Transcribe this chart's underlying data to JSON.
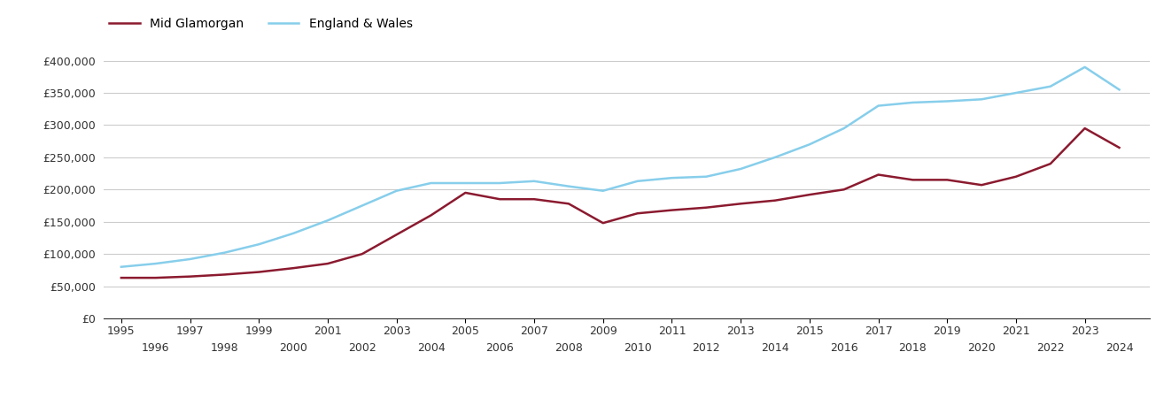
{
  "mid_glamorgan": {
    "years": [
      1995,
      1996,
      1997,
      1998,
      1999,
      2000,
      2001,
      2002,
      2003,
      2004,
      2005,
      2006,
      2007,
      2008,
      2009,
      2010,
      2011,
      2012,
      2013,
      2014,
      2015,
      2016,
      2017,
      2018,
      2019,
      2020,
      2021,
      2022,
      2023,
      2024
    ],
    "values": [
      63000,
      63000,
      65000,
      68000,
      72000,
      78000,
      85000,
      100000,
      130000,
      160000,
      195000,
      185000,
      185000,
      178000,
      148000,
      163000,
      168000,
      172000,
      178000,
      183000,
      192000,
      200000,
      223000,
      215000,
      215000,
      207000,
      220000,
      240000,
      295000,
      265000
    ]
  },
  "england_wales": {
    "years": [
      1995,
      1996,
      1997,
      1998,
      1999,
      2000,
      2001,
      2002,
      2003,
      2004,
      2005,
      2006,
      2007,
      2008,
      2009,
      2010,
      2011,
      2012,
      2013,
      2014,
      2015,
      2016,
      2017,
      2018,
      2019,
      2020,
      2021,
      2022,
      2023,
      2024
    ],
    "values": [
      80000,
      85000,
      92000,
      102000,
      115000,
      132000,
      152000,
      175000,
      198000,
      210000,
      210000,
      210000,
      213000,
      205000,
      198000,
      213000,
      218000,
      220000,
      232000,
      250000,
      270000,
      295000,
      330000,
      335000,
      337000,
      340000,
      350000,
      360000,
      390000,
      355000
    ]
  },
  "mid_glamorgan_color": "#8B1A2F",
  "england_wales_color": "#87CEEB",
  "background_color": "#ffffff",
  "grid_color": "#cccccc",
  "ylim": [
    0,
    420000
  ],
  "yticks": [
    0,
    50000,
    100000,
    150000,
    200000,
    250000,
    300000,
    350000,
    400000
  ],
  "mid_glamorgan_label": "Mid Glamorgan",
  "england_wales_label": "England & Wales",
  "xlim": [
    1994.5,
    2024.9
  ]
}
